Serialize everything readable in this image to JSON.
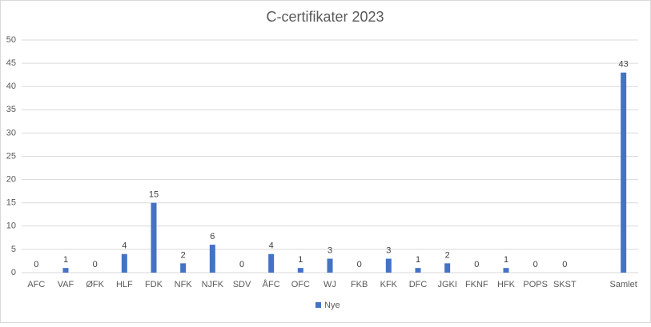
{
  "chart_data": {
    "type": "bar",
    "title": "C-certifikater 2023",
    "categories": [
      "AFC",
      "VAF",
      "ØFK",
      "HLF",
      "FDK",
      "NFK",
      "NJFK",
      "SDV",
      "ÅFC",
      "OFC",
      "WJ",
      "FKB",
      "KFK",
      "DFC",
      "JGKI",
      "FKNF",
      "HFK",
      "POPS",
      "SKST",
      null,
      "Samlet"
    ],
    "series": [
      {
        "name": "Nye",
        "color": "#4472c4",
        "values": [
          0,
          1,
          0,
          4,
          15,
          2,
          6,
          0,
          4,
          1,
          3,
          0,
          3,
          1,
          2,
          0,
          1,
          0,
          0,
          null,
          43
        ]
      }
    ],
    "ylim": [
      0,
      50
    ],
    "yticks": [
      0,
      5,
      10,
      15,
      20,
      25,
      30,
      35,
      40,
      45,
      50
    ],
    "grid": true,
    "legend": "bottom",
    "data_labels": true
  }
}
